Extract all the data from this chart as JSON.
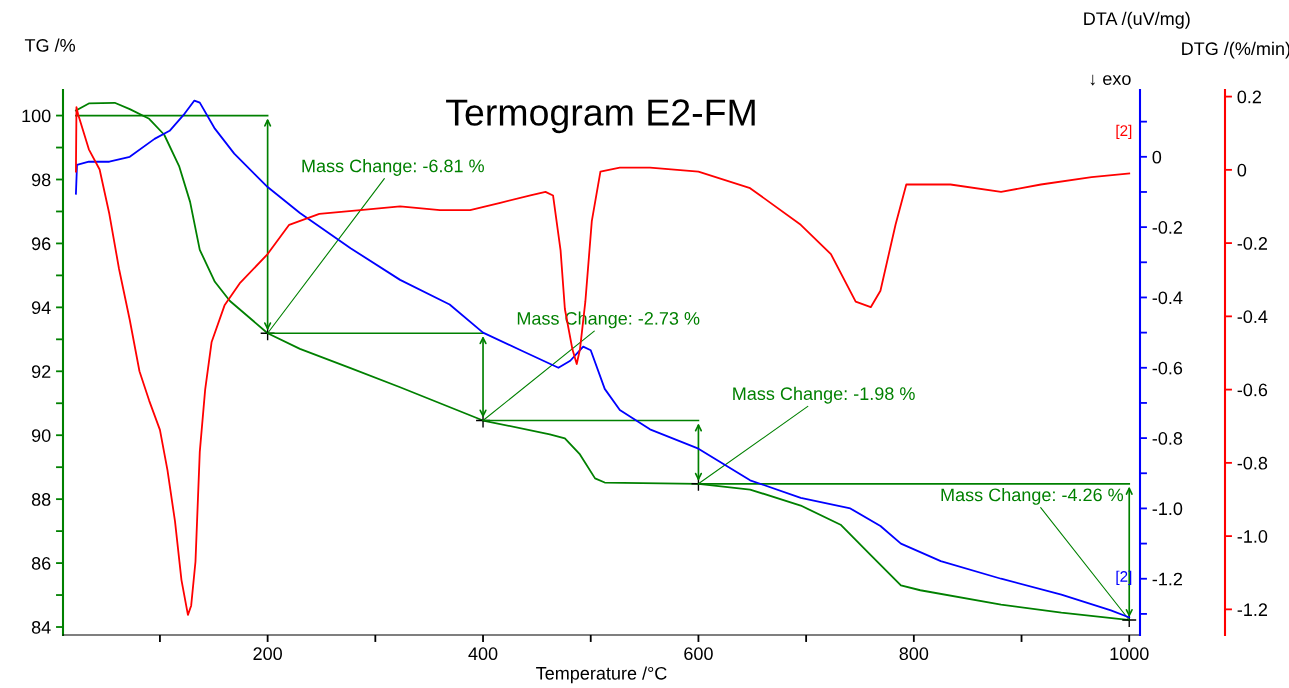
{
  "chart_data": {
    "type": "line",
    "title": "Termogram E2-FM",
    "xlabel": "Temperature /°C",
    "ylabel": "TG /%",
    "y2label": "DTA /(uV/mg)",
    "y3label": "DTG /(%/min)",
    "xlim": [
      10,
      1010
    ],
    "xticks": [
      {
        "value": 100,
        "label": null
      },
      200,
      {
        "value": 300,
        "label": null
      },
      400,
      {
        "value": 500,
        "label": null
      },
      600,
      {
        "value": 700,
        "label": null
      },
      800,
      {
        "value": 900,
        "label": null
      },
      1000
    ],
    "ylim": [
      83.75,
      100.8
    ],
    "yticks": [
      84,
      {
        "value": 85,
        "label": null
      },
      86,
      {
        "value": 87,
        "label": null
      },
      88,
      {
        "value": 89,
        "label": null
      },
      90,
      {
        "value": 91,
        "label": null
      },
      92,
      {
        "value": 93,
        "label": null
      },
      94,
      {
        "value": 95,
        "label": null
      },
      96,
      {
        "value": 97,
        "label": null
      },
      98,
      {
        "value": 99,
        "label": null
      },
      100
    ],
    "y2lim": [
      -1.36,
      0.19
    ],
    "y2ticks": [
      {
        "value": -1.3,
        "label": null
      },
      -1.2,
      {
        "value": -1.1,
        "label": null
      },
      {
        "value": -1.0,
        "label": "-1.0"
      },
      {
        "value": -0.9,
        "label": null
      },
      -0.8,
      {
        "value": -0.7,
        "label": null
      },
      -0.6,
      {
        "value": -0.5,
        "label": null
      },
      -0.4,
      {
        "value": -0.3,
        "label": null
      },
      -0.2,
      {
        "value": -0.1,
        "label": null
      },
      0,
      {
        "value": 0.1,
        "label": null
      }
    ],
    "y3lim": [
      -1.27,
      0.218
    ],
    "y3ticks": [
      -1.2,
      {
        "value": -1.0,
        "label": "-1.0"
      },
      -0.8,
      -0.6,
      -0.4,
      -0.2,
      0,
      0.2
    ],
    "grid": false,
    "legend": false,
    "marker": "none",
    "line_style": "solid",
    "series": [
      {
        "color": "#008000",
        "axis": "y",
        "x": [
          22,
          34,
          58,
          72,
          90,
          104,
          118,
          128,
          137,
          151,
          165,
          200,
          230,
          277,
          323,
          400,
          462,
          476,
          490,
          504,
          513,
          600,
          648,
          695,
          732,
          760,
          788,
          806,
          881,
          937,
          1000
        ],
        "values": [
          100.16,
          100.38,
          100.4,
          100.2,
          99.9,
          99.4,
          98.4,
          97.3,
          95.8,
          94.8,
          94.2,
          93.19,
          92.7,
          92.1,
          91.5,
          90.46,
          90.03,
          89.9,
          89.4,
          88.65,
          88.52,
          88.48,
          88.3,
          87.8,
          87.2,
          86.25,
          85.3,
          85.15,
          84.7,
          84.45,
          84.22
        ]
      },
      {
        "color": "#0000ff",
        "axis": "y2",
        "x": [
          22,
          23,
          34,
          53,
          72,
          95,
          109,
          123,
          132,
          137,
          151,
          169,
          200,
          230,
          277,
          323,
          369,
          400,
          435,
          470,
          481,
          493,
          500,
          513,
          527,
          555,
          600,
          648,
          695,
          741,
          769,
          788,
          825,
          881,
          937,
          983,
          1000
        ],
        "values": [
          -0.105,
          -0.023,
          -0.014,
          -0.014,
          0.0,
          0.051,
          0.074,
          0.123,
          0.16,
          0.154,
          0.08,
          0.009,
          -0.086,
          -0.16,
          -0.26,
          -0.35,
          -0.42,
          -0.5,
          -0.55,
          -0.6,
          -0.58,
          -0.54,
          -0.55,
          -0.66,
          -0.72,
          -0.775,
          -0.83,
          -0.92,
          -0.97,
          -1.0,
          -1.05,
          -1.1,
          -1.15,
          -1.2,
          -1.245,
          -1.29,
          -1.31
        ]
      },
      {
        "color": "#ff0000",
        "axis": "y3",
        "x": [
          22,
          22.5,
          24,
          34,
          44,
          53,
          62,
          72,
          81,
          90,
          100,
          107,
          114,
          120,
          126,
          129,
          133,
          137,
          142,
          148,
          160,
          174,
          200,
          220,
          248,
          286,
          323,
          360,
          388,
          416,
          444,
          458,
          465,
          472,
          476,
          483,
          487,
          490,
          495,
          501,
          509,
          527,
          555,
          600,
          648,
          695,
          723,
          746,
          760,
          769,
          783,
          793,
          834,
          881,
          918,
          965,
          1000
        ],
        "values": [
          -0.005,
          0.171,
          0.152,
          0.056,
          0.001,
          -0.12,
          -0.27,
          -0.41,
          -0.55,
          -0.63,
          -0.71,
          -0.82,
          -0.96,
          -1.12,
          -1.215,
          -1.19,
          -1.07,
          -0.77,
          -0.6,
          -0.47,
          -0.37,
          -0.31,
          -0.23,
          -0.15,
          -0.12,
          -0.11,
          -0.1,
          -0.11,
          -0.11,
          -0.09,
          -0.07,
          -0.06,
          -0.07,
          -0.22,
          -0.38,
          -0.49,
          -0.53,
          -0.49,
          -0.36,
          -0.14,
          -0.005,
          0.006,
          0.006,
          -0.005,
          -0.05,
          -0.15,
          -0.23,
          -0.36,
          -0.375,
          -0.33,
          -0.15,
          -0.04,
          -0.04,
          -0.06,
          -0.04,
          -0.02,
          -0.01
        ]
      }
    ],
    "annotations": [
      {
        "text": "Mass Change: -6.81 %",
        "x": 200,
        "y": 93.19
      },
      {
        "text": "Mass Change: -2.73 %",
        "x": 400,
        "y": 90.46
      },
      {
        "text": "Mass Change: -1.98 %",
        "x": 600,
        "y": 88.48
      },
      {
        "text": "Mass Change: -4.26 %",
        "x": 1000,
        "y": 84.22
      },
      "[2]",
      "[2]",
      "↓ exo"
    ]
  }
}
